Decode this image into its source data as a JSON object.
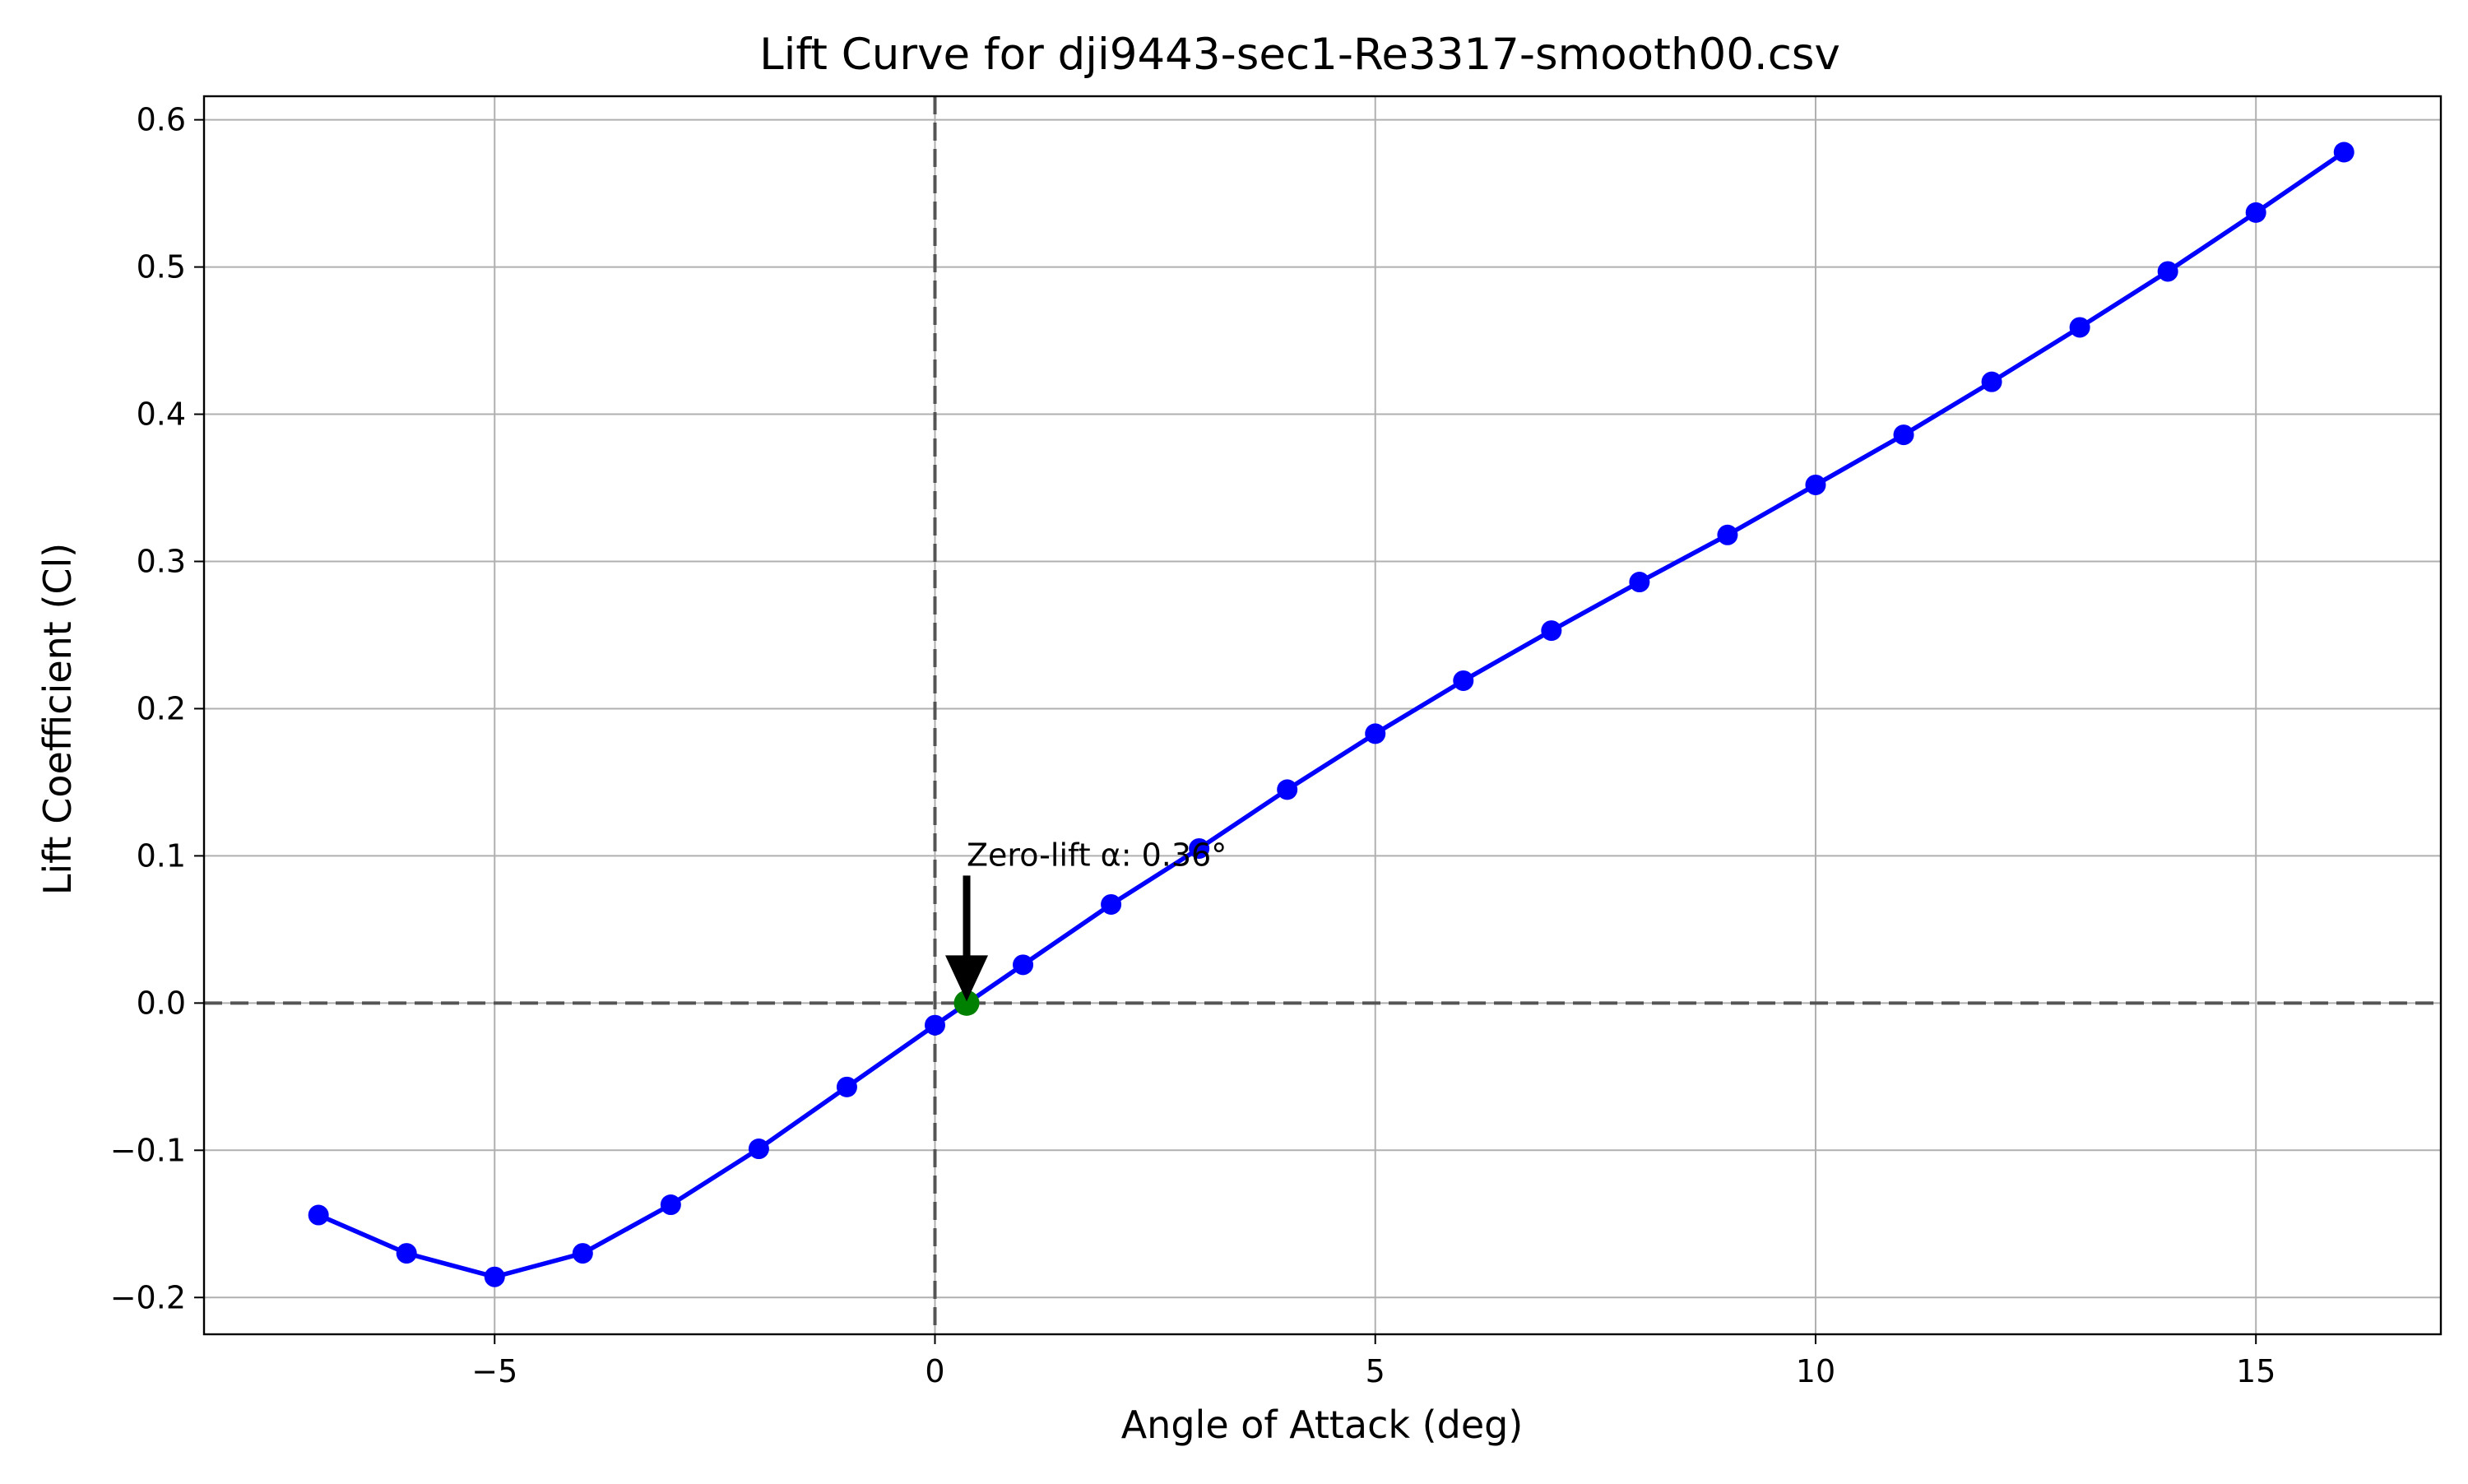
{
  "chart_data": {
    "type": "line",
    "title": "Lift Curve for dji9443-sec1-Re3317-smooth00.csv",
    "xlabel": "Angle of Attack (deg)",
    "ylabel": "Lift Coefficient (Cl)",
    "xlim": [
      -8.3,
      17.1
    ],
    "ylim": [
      -0.225,
      0.616
    ],
    "xticks": [
      -5,
      0,
      5,
      10,
      15
    ],
    "xtick_labels": [
      "−5",
      "0",
      "5",
      "10",
      "15"
    ],
    "yticks": [
      -0.2,
      -0.1,
      0.0,
      0.1,
      0.2,
      0.3,
      0.4,
      0.5,
      0.6
    ],
    "ytick_labels": [
      "−0.2",
      "−0.1",
      "0.0",
      "0.1",
      "0.2",
      "0.3",
      "0.4",
      "0.5",
      "0.6"
    ],
    "grid": true,
    "series": [
      {
        "color": "#0000ff",
        "x": [
          -7,
          -6,
          -5,
          -4,
          -3,
          -2,
          -1,
          0,
          1,
          2,
          3,
          4,
          5,
          6,
          7,
          8,
          9,
          10,
          11,
          12,
          13,
          14,
          15,
          16
        ],
        "y": [
          -0.144,
          -0.17,
          -0.186,
          -0.17,
          -0.137,
          -0.099,
          -0.057,
          -0.015,
          0.026,
          0.067,
          0.105,
          0.145,
          0.183,
          0.219,
          0.253,
          0.286,
          0.318,
          0.352,
          0.386,
          0.422,
          0.459,
          0.497,
          0.537,
          0.578
        ]
      }
    ],
    "reference_lines": {
      "horizontal_y": 0.0,
      "vertical_x": 0.0,
      "style": "dashed",
      "color": "#555555"
    },
    "zero_lift_point": {
      "x": 0.36,
      "y": 0.0,
      "color": "#008000"
    },
    "annotation": {
      "text": "Zero-lift α: 0.36°",
      "x": 0.36,
      "y": 0.1,
      "arrow_to_x": 0.36,
      "arrow_to_y": 0.0
    }
  }
}
